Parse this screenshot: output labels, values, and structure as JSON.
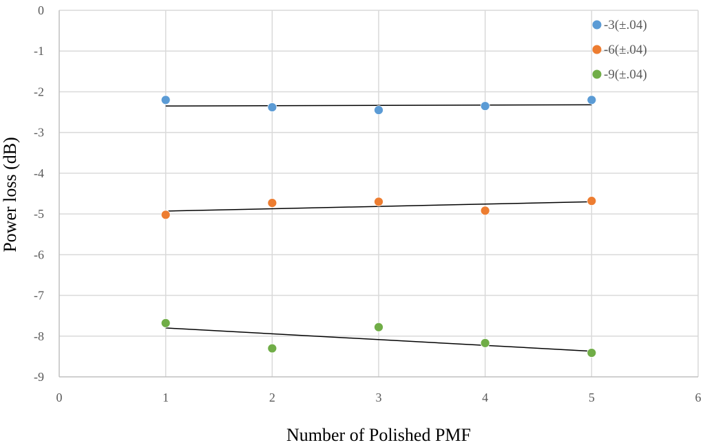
{
  "chart_data": {
    "type": "scatter",
    "title": "",
    "xlabel": "Number of Polished PMF",
    "ylabel": "Power loss (dB)",
    "xlim": [
      0,
      6
    ],
    "ylim": [
      -9,
      0
    ],
    "xticks": [
      0,
      1,
      2,
      3,
      4,
      5,
      6
    ],
    "yticks": [
      0,
      -1,
      -2,
      -3,
      -4,
      -5,
      -6,
      -7,
      -8,
      -9
    ],
    "grid": true,
    "legend_position": "top-right",
    "series": [
      {
        "name": "-3(±.04)",
        "color": "#5b9bd5",
        "x": [
          1,
          2,
          3,
          4,
          5
        ],
        "y": [
          -2.2,
          -2.38,
          -2.45,
          -2.35,
          -2.2
        ],
        "trendline": [
          [
            1,
            -2.35
          ],
          [
            5,
            -2.32
          ]
        ]
      },
      {
        "name": "-6(±.04)",
        "color": "#ed7d31",
        "x": [
          1,
          2,
          3,
          4,
          5
        ],
        "y": [
          -5.02,
          -4.73,
          -4.7,
          -4.92,
          -4.68
        ],
        "trendline": [
          [
            1,
            -4.93
          ],
          [
            5,
            -4.7
          ]
        ]
      },
      {
        "name": "-9(±.04)",
        "color": "#70ad47",
        "x": [
          1,
          2,
          3,
          4,
          5
        ],
        "y": [
          -7.68,
          -8.3,
          -7.78,
          -8.17,
          -8.41
        ],
        "trendline": [
          [
            1,
            -7.8
          ],
          [
            5,
            -8.37
          ]
        ]
      }
    ]
  }
}
